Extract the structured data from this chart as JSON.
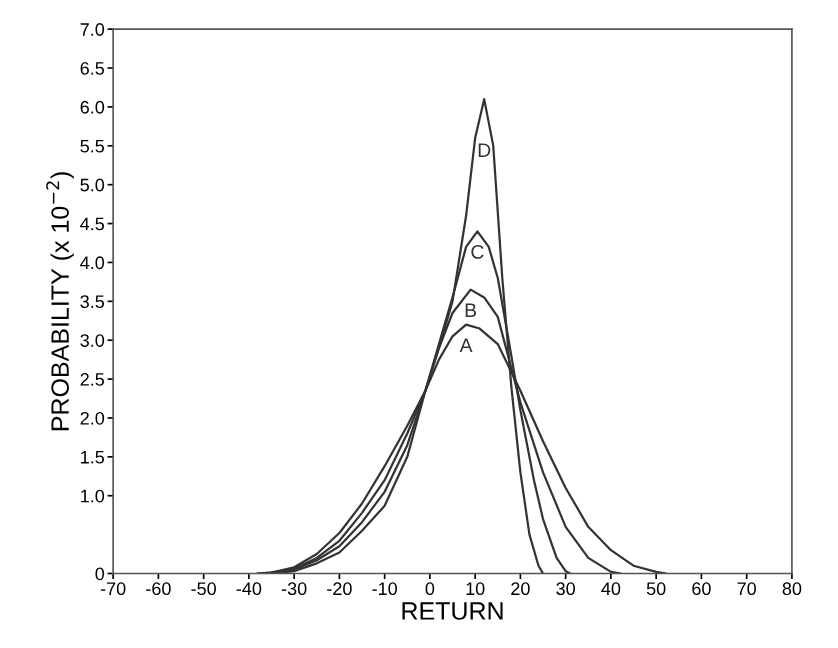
{
  "chart_data": {
    "type": "line",
    "xlabel": "RETURN",
    "ylabel": "PROBABILITY (x 10$^{−2}$)",
    "xlim": [
      -70,
      80
    ],
    "ylim": [
      0,
      7
    ],
    "xticks": [
      -70,
      -60,
      -50,
      -40,
      -30,
      -20,
      -10,
      0,
      10,
      20,
      30,
      40,
      50,
      60,
      70,
      80
    ],
    "yticks": [
      0,
      {
        "value": 1,
        "label": "1.0"
      },
      {
        "value": 1.5,
        "label": "1.5"
      },
      {
        "value": 2,
        "label": "2.0"
      },
      {
        "value": 2.5,
        "label": "2.5"
      },
      {
        "value": 3,
        "label": "3.0"
      },
      {
        "value": 3.5,
        "label": "3.5"
      },
      {
        "value": 4,
        "label": "4.0"
      },
      {
        "value": 4.5,
        "label": "4.5"
      },
      {
        "value": 5,
        "label": "5.0"
      },
      {
        "value": 5.5,
        "label": "5.5"
      },
      {
        "value": 6,
        "label": "6.0"
      },
      {
        "value": 6.5,
        "label": "6.5"
      },
      {
        "value": 7,
        "label": "7.0"
      }
    ],
    "grid": false,
    "legend": false,
    "marker": "none",
    "line_style": "solid",
    "series": [
      {
        "name": "A",
        "color": "#333333",
        "x": [
          -38,
          -35,
          -30,
          -25,
          -20,
          -15,
          -10,
          -5,
          -1,
          2,
          5,
          8,
          11,
          15,
          20,
          25,
          30,
          35,
          40,
          45,
          50,
          52
        ],
        "values": [
          0,
          0.01,
          0.08,
          0.25,
          0.52,
          0.9,
          1.38,
          1.9,
          2.35,
          2.75,
          3.05,
          3.2,
          3.15,
          2.95,
          2.35,
          1.7,
          1.1,
          0.6,
          0.3,
          0.1,
          0.02,
          0
        ]
      },
      {
        "name": "B",
        "color": "#333333",
        "x": [
          -37,
          -35,
          -30,
          -25,
          -20,
          -15,
          -10,
          -5,
          -1,
          2,
          5,
          9,
          12,
          15,
          20,
          25,
          30,
          35,
          40,
          42
        ],
        "values": [
          0,
          0.01,
          0.06,
          0.2,
          0.42,
          0.78,
          1.2,
          1.8,
          2.35,
          2.9,
          3.35,
          3.65,
          3.55,
          3.3,
          2.2,
          1.3,
          0.6,
          0.2,
          0.02,
          0
        ]
      },
      {
        "name": "C",
        "color": "#333333",
        "x": [
          -36,
          -35,
          -30,
          -25,
          -20,
          -15,
          -10,
          -5,
          -1,
          2,
          5,
          8,
          10.5,
          13,
          15,
          18,
          20,
          23,
          25,
          28,
          30,
          31
        ],
        "values": [
          0,
          0.01,
          0.05,
          0.17,
          0.35,
          0.66,
          1.05,
          1.65,
          2.35,
          2.95,
          3.55,
          4.2,
          4.4,
          4.2,
          3.8,
          2.8,
          2.1,
          1.2,
          0.7,
          0.2,
          0.03,
          0
        ]
      },
      {
        "name": "D",
        "color": "#333333",
        "x": [
          -35,
          -30,
          -25,
          -20,
          -15,
          -10,
          -5,
          -1,
          2,
          5,
          8,
          10,
          12,
          14,
          16,
          18,
          20,
          22,
          24,
          25
        ],
        "values": [
          0,
          0.03,
          0.13,
          0.27,
          0.55,
          0.87,
          1.5,
          2.35,
          2.9,
          3.5,
          4.6,
          5.6,
          6.1,
          5.5,
          3.8,
          2.4,
          1.3,
          0.5,
          0.1,
          0
        ]
      }
    ]
  }
}
